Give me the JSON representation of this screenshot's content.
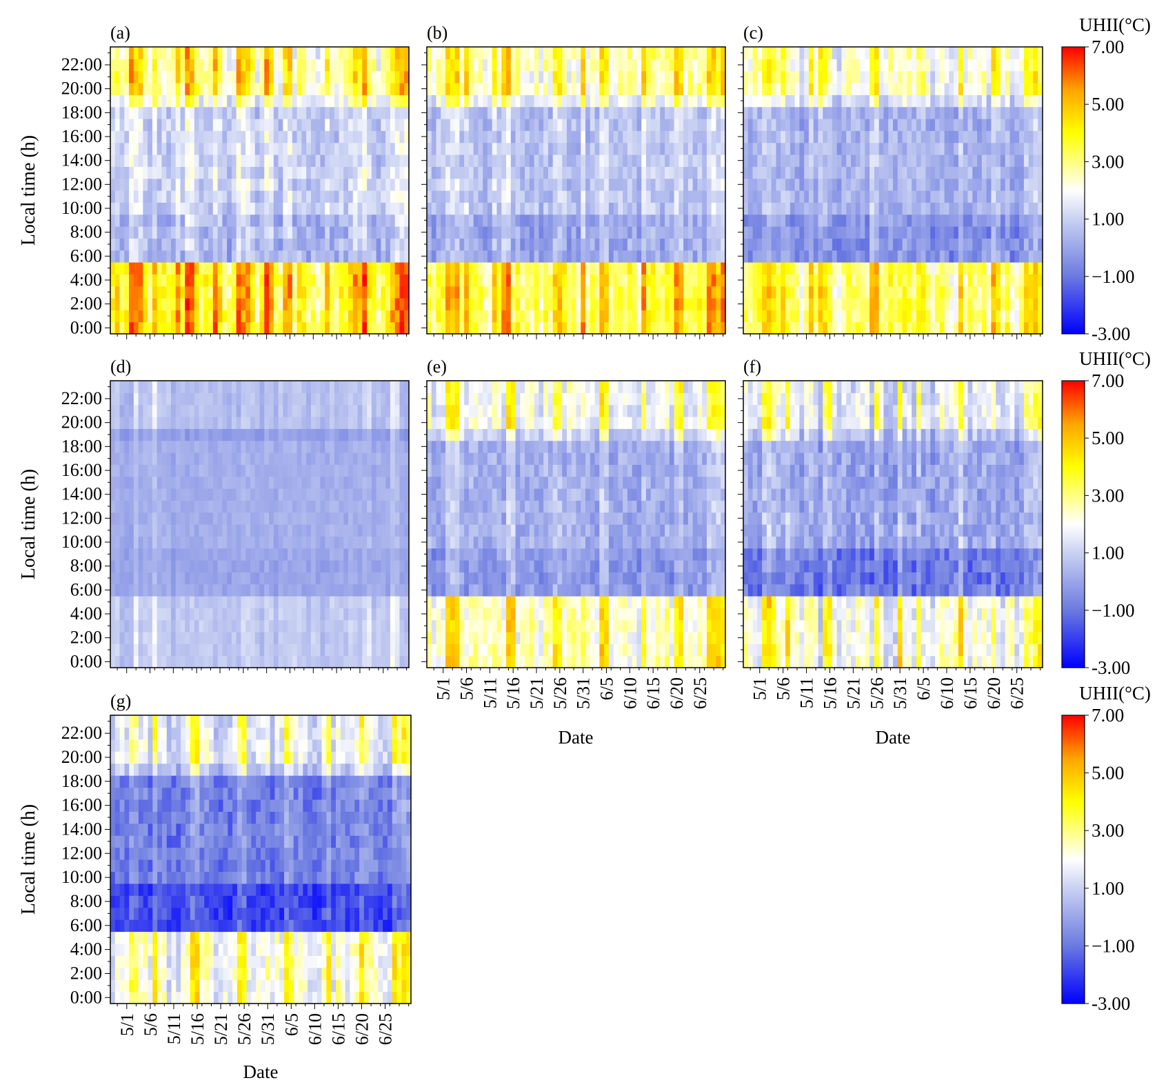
{
  "chart_data": {
    "type": "heatmap",
    "description_note": "Seven hourly-by-daily heatmaps of urban heat island intensity, panels (a)-(g), sharing one color scale.",
    "x_axis": {
      "label": "Date",
      "day_count": 64,
      "first_day": "4/28",
      "tick_labels": [
        "5/1",
        "5/6",
        "5/11",
        "5/16",
        "5/21",
        "5/26",
        "5/31",
        "6/5",
        "6/10",
        "6/15",
        "6/20",
        "6/25"
      ],
      "tick_day_index": [
        3,
        8,
        13,
        18,
        23,
        28,
        33,
        38,
        43,
        48,
        53,
        58
      ]
    },
    "y_axis": {
      "label": "Local time (h)",
      "range": [
        0,
        23
      ],
      "tick_labels": [
        "0:00",
        "2:00",
        "4:00",
        "6:00",
        "8:00",
        "10:00",
        "12:00",
        "14:00",
        "16:00",
        "18:00",
        "20:00",
        "22:00"
      ],
      "tick_hours": [
        0,
        2,
        4,
        6,
        8,
        10,
        12,
        14,
        16,
        18,
        20,
        22
      ]
    },
    "colorbar": {
      "title": "UHII(°C)",
      "range": [
        -3,
        7
      ],
      "tick_labels": [
        "7.00",
        "5.00",
        "3.00",
        "1.00",
        "−1.00",
        "-3.00"
      ],
      "tick_values": [
        7,
        5,
        3,
        1,
        -1,
        -3
      ],
      "stops": [
        {
          "value": -3,
          "color": "#0000ff"
        },
        {
          "value": -1,
          "color": "#6b7ae0"
        },
        {
          "value": 1,
          "color": "#c9d1f2"
        },
        {
          "value": 2,
          "color": "#ffffff"
        },
        {
          "value": 4,
          "color": "#ffff00"
        },
        {
          "value": 5.5,
          "color": "#ffa500"
        },
        {
          "value": 7,
          "color": "#ff0000"
        }
      ]
    },
    "panels": [
      {
        "label": "(a)",
        "night_mean": 3.6,
        "day_mean": 0.9,
        "evening_mean": 2.6,
        "morning_dip": 0.6,
        "variability": 1.6,
        "warm_days": [
          4,
          5,
          6,
          9,
          14,
          16,
          17,
          22,
          27,
          28,
          29,
          33,
          34,
          37,
          38,
          46,
          52,
          53,
          54,
          60,
          61,
          62,
          63
        ]
      },
      {
        "label": "(b)",
        "night_mean": 3.2,
        "day_mean": 0.6,
        "evening_mean": 2.4,
        "morning_dip": 0.6,
        "variability": 1.4,
        "warm_days": [
          4,
          5,
          6,
          8,
          14,
          16,
          17,
          27,
          28,
          33,
          37,
          38,
          46,
          53,
          54,
          60,
          61,
          62,
          63
        ]
      },
      {
        "label": "(c)",
        "night_mean": 2.9,
        "day_mean": 0.2,
        "evening_mean": 2.0,
        "morning_dip": 0.7,
        "variability": 1.4,
        "warm_days": [
          4,
          5,
          6,
          8,
          14,
          16,
          17,
          27,
          28,
          37,
          38,
          46,
          53,
          54,
          60,
          61,
          62,
          63
        ]
      },
      {
        "label": "(d)",
        "night_mean": 0.8,
        "day_mean": 0.2,
        "evening_mean": 0.6,
        "morning_dip": 0.2,
        "variability": 0.6,
        "warm_days": [
          5,
          9,
          55,
          60,
          61
        ]
      },
      {
        "label": "(e)",
        "night_mean": 2.4,
        "day_mean": 0.2,
        "evening_mean": 1.8,
        "morning_dip": 0.5,
        "variability": 1.3,
        "warm_days": [
          4,
          5,
          6,
          17,
          18,
          27,
          28,
          37,
          38,
          46,
          53,
          54,
          60,
          61,
          62,
          63
        ]
      },
      {
        "label": "(f)",
        "night_mean": 1.9,
        "day_mean": 0.0,
        "evening_mean": 1.4,
        "morning_dip": 1.0,
        "variability": 1.5,
        "warm_days": [
          4,
          5,
          6,
          9,
          17,
          18,
          28,
          33,
          37,
          46,
          53,
          60,
          61,
          62,
          63
        ]
      },
      {
        "label": "(g)",
        "night_mean": 1.9,
        "day_mean": -0.9,
        "evening_mean": 1.4,
        "morning_dip": 1.0,
        "variability": 1.4,
        "warm_days": [
          4,
          5,
          9,
          17,
          18,
          27,
          28,
          37,
          38,
          46,
          53,
          54,
          60,
          61,
          62,
          63
        ]
      }
    ]
  }
}
